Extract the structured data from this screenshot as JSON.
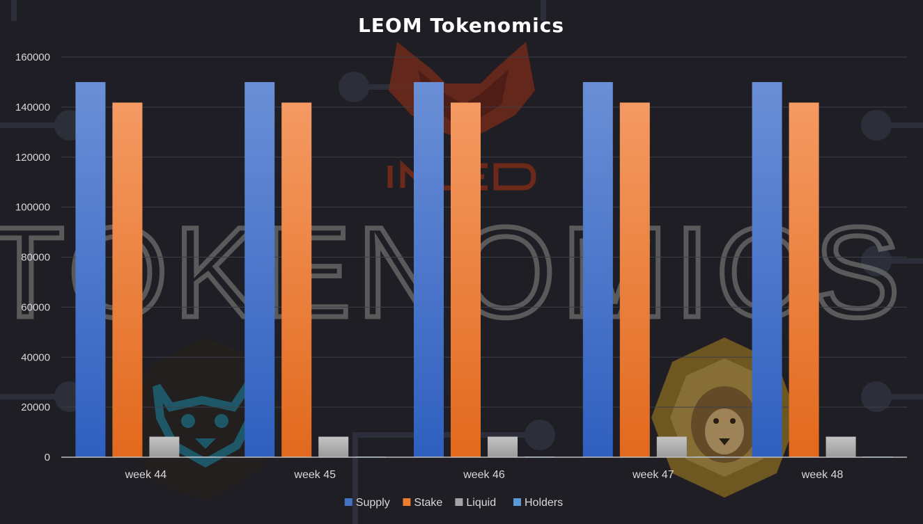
{
  "chart_data": {
    "type": "bar",
    "title": "LEOM Tokenomics",
    "xlabel": "",
    "ylabel": "",
    "categories": [
      "week 44",
      "week 45",
      "week 46",
      "week 47",
      "week 48"
    ],
    "series": [
      {
        "name": "Supply",
        "values": [
          150000,
          150000,
          150000,
          150000,
          150000
        ],
        "color": "#4472c4"
      },
      {
        "name": "Stake",
        "values": [
          141800,
          141800,
          141800,
          141800,
          141800
        ],
        "color": "#ed7d31"
      },
      {
        "name": "Liquid",
        "values": [
          8200,
          8200,
          8200,
          8200,
          8200
        ],
        "color": "#a5a5a5"
      },
      {
        "name": "Holders",
        "values": [
          120,
          120,
          120,
          120,
          120
        ],
        "color": "#5b9bd5"
      }
    ],
    "ylim": [
      0,
      160000
    ],
    "yticks": [
      0,
      20000,
      40000,
      60000,
      80000,
      100000,
      120000,
      140000,
      160000
    ],
    "grid": true,
    "legend_position": "bottom"
  },
  "background": {
    "watermark_text": "TOKENOMICS",
    "logo_text": "INLEO"
  }
}
